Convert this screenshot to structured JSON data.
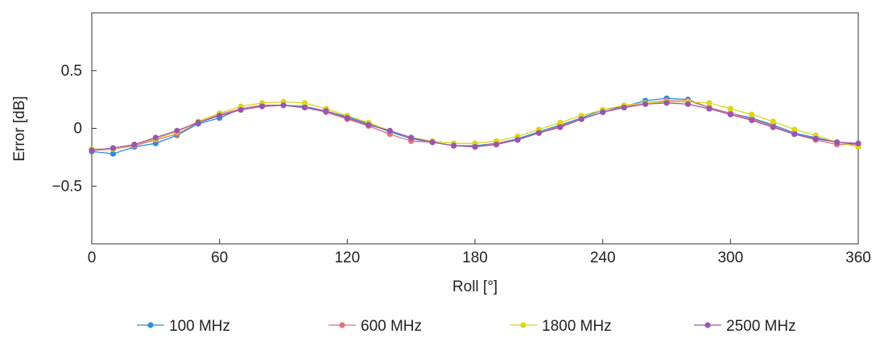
{
  "chart_data": {
    "type": "line",
    "xlabel": "Roll [°]",
    "ylabel": "Error [dB]",
    "xlim": [
      0,
      360
    ],
    "ylim": [
      -1,
      1
    ],
    "x_ticks": [
      0,
      60,
      120,
      180,
      240,
      300,
      360
    ],
    "y_ticks": [
      -0.5,
      0,
      0.5
    ],
    "y_tick_labels": [
      "−0.5",
      "0",
      "0.5"
    ],
    "grid": false,
    "legend_position": "bottom",
    "x": [
      0,
      10,
      20,
      30,
      40,
      50,
      60,
      70,
      80,
      90,
      100,
      110,
      120,
      130,
      140,
      150,
      160,
      170,
      180,
      190,
      200,
      210,
      220,
      230,
      240,
      250,
      260,
      270,
      280,
      290,
      300,
      310,
      320,
      330,
      340,
      350,
      360
    ],
    "series": [
      {
        "name": "100 MHz",
        "color": "#2a8fd6",
        "values": [
          -0.2,
          -0.22,
          -0.16,
          -0.13,
          -0.06,
          0.04,
          0.09,
          0.17,
          0.2,
          0.2,
          0.19,
          0.15,
          0.1,
          0.04,
          -0.03,
          -0.09,
          -0.12,
          -0.15,
          -0.15,
          -0.13,
          -0.09,
          -0.03,
          0.03,
          0.09,
          0.16,
          0.19,
          0.24,
          0.26,
          0.25,
          0.18,
          0.13,
          0.09,
          0.03,
          -0.04,
          -0.08,
          -0.12,
          -0.14
        ]
      },
      {
        "name": "600 MHz",
        "color": "#e07080",
        "values": [
          -0.19,
          -0.18,
          -0.15,
          -0.1,
          -0.05,
          0.05,
          0.12,
          0.17,
          0.2,
          0.2,
          0.18,
          0.14,
          0.08,
          0.02,
          -0.05,
          -0.11,
          -0.12,
          -0.15,
          -0.16,
          -0.13,
          -0.1,
          -0.04,
          0.02,
          0.08,
          0.14,
          0.19,
          0.22,
          0.24,
          0.24,
          0.18,
          0.13,
          0.08,
          0.02,
          -0.05,
          -0.1,
          -0.14,
          -0.14
        ]
      },
      {
        "name": "1800 MHz",
        "color": "#d8d81a",
        "values": [
          -0.18,
          -0.18,
          -0.14,
          -0.09,
          -0.03,
          0.06,
          0.13,
          0.19,
          0.22,
          0.23,
          0.22,
          0.17,
          0.11,
          0.05,
          -0.02,
          -0.08,
          -0.11,
          -0.13,
          -0.13,
          -0.11,
          -0.07,
          -0.01,
          0.05,
          0.11,
          0.16,
          0.2,
          0.22,
          0.23,
          0.23,
          0.22,
          0.17,
          0.12,
          0.06,
          -0.01,
          -0.06,
          -0.12,
          -0.16
        ]
      },
      {
        "name": "2500 MHz",
        "color": "#9a55b0",
        "values": [
          -0.19,
          -0.17,
          -0.14,
          -0.08,
          -0.02,
          0.05,
          0.11,
          0.16,
          0.19,
          0.2,
          0.18,
          0.15,
          0.09,
          0.03,
          -0.02,
          -0.08,
          -0.12,
          -0.15,
          -0.16,
          -0.14,
          -0.1,
          -0.04,
          0.01,
          0.08,
          0.14,
          0.18,
          0.21,
          0.22,
          0.21,
          0.17,
          0.12,
          0.07,
          0.01,
          -0.05,
          -0.09,
          -0.12,
          -0.13
        ]
      }
    ]
  }
}
